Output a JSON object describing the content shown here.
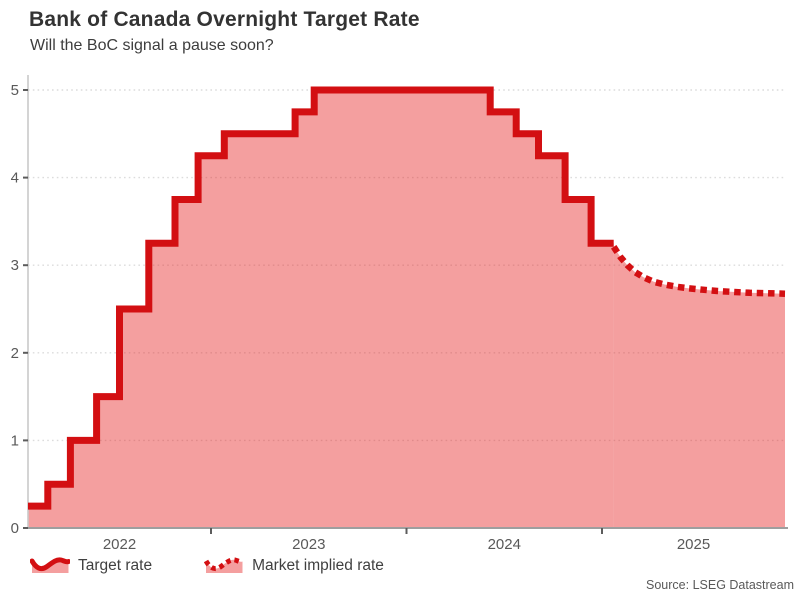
{
  "header": {
    "title": "Bank of Canada Overnight Target Rate",
    "subtitle": "Will the BoC signal a pause soon?"
  },
  "legend": {
    "items": [
      {
        "label": "Target rate",
        "line_style": "solid"
      },
      {
        "label": "Market implied rate",
        "line_style": "dotted"
      }
    ]
  },
  "footer": {
    "source": "Source: LSEG Datastream"
  },
  "colors": {
    "line": "#d30f12",
    "fill": "rgba(230,36,36,0.44)",
    "grid": "#dcdcdc",
    "y_axis": "#c9c9c9",
    "x_axis": "#9e9e9e",
    "tick": "#5c5c5c",
    "tick_text": "#595959"
  },
  "chart_data": {
    "type": "area",
    "title": "Bank of Canada Overnight Target Rate",
    "subtitle": "Will the BoC signal a pause soon?",
    "xlabel": "",
    "ylabel": "",
    "grid": "horizontal-dotted",
    "legend_position": "bottom",
    "x_axis": {
      "range": [
        2022.064,
        2025.936
      ],
      "boundary_ticks": [
        2023,
        2024,
        2025
      ],
      "year_labels": [
        "2022",
        "2023",
        "2024",
        "2025"
      ]
    },
    "y_axis": {
      "range": [
        0,
        5
      ],
      "ticks": [
        0,
        1,
        2,
        3,
        4,
        5
      ]
    },
    "series": [
      {
        "name": "Target rate",
        "draw": "step",
        "line": "solid",
        "end_x": 2025.06,
        "points": [
          [
            2022.064,
            0.25
          ],
          [
            2022.165,
            0.5
          ],
          [
            2022.281,
            1.0
          ],
          [
            2022.415,
            1.5
          ],
          [
            2022.532,
            2.5
          ],
          [
            2022.682,
            3.25
          ],
          [
            2022.816,
            3.75
          ],
          [
            2022.934,
            4.25
          ],
          [
            2023.068,
            4.5
          ],
          [
            2023.43,
            4.75
          ],
          [
            2023.528,
            5.0
          ],
          [
            2024.428,
            4.75
          ],
          [
            2024.561,
            4.5
          ],
          [
            2024.675,
            4.25
          ],
          [
            2024.811,
            3.75
          ],
          [
            2024.944,
            3.25
          ]
        ]
      },
      {
        "name": "Market implied rate",
        "draw": "line",
        "line": "dotted",
        "points": [
          [
            2025.06,
            3.21
          ],
          [
            2025.095,
            3.09
          ],
          [
            2025.13,
            3.0
          ],
          [
            2025.17,
            2.92
          ],
          [
            2025.215,
            2.86
          ],
          [
            2025.265,
            2.81
          ],
          [
            2025.32,
            2.78
          ],
          [
            2025.38,
            2.755
          ],
          [
            2025.445,
            2.735
          ],
          [
            2025.515,
            2.72
          ],
          [
            2025.59,
            2.705
          ],
          [
            2025.67,
            2.695
          ],
          [
            2025.755,
            2.685
          ],
          [
            2025.845,
            2.68
          ],
          [
            2025.936,
            2.675
          ]
        ]
      }
    ]
  }
}
